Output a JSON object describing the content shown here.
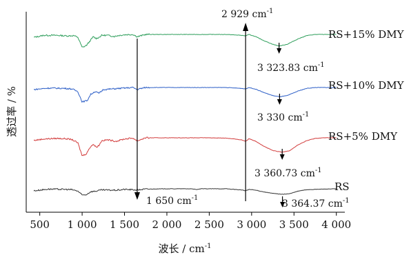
{
  "chart_data": {
    "type": "line",
    "xlabel": "波长 / cm",
    "xlabel_sup": "-1",
    "ylabel": "透过率 / %",
    "xlim": [
      340,
      4100
    ],
    "xticks": [
      500,
      1000,
      1500,
      2000,
      2500,
      3000,
      3500,
      4000
    ],
    "xtick_labels": [
      "500",
      "1 000",
      "1 500",
      "2 000",
      "2 500",
      "3 000",
      "3 500",
      "4 000"
    ],
    "y_ticks_shown": false,
    "grid": false,
    "series": [
      {
        "name": "RS+15% DMY",
        "color": "#2e9e5b",
        "offset": 3,
        "points": [
          [
            430,
            0.9
          ],
          [
            550,
            0.97
          ],
          [
            700,
            0.97
          ],
          [
            820,
            0.95
          ],
          [
            900,
            0.96
          ],
          [
            950,
            0.9
          ],
          [
            1000,
            0.55
          ],
          [
            1050,
            0.62
          ],
          [
            1100,
            0.8
          ],
          [
            1130,
            0.92
          ],
          [
            1165,
            0.86
          ],
          [
            1200,
            0.9
          ],
          [
            1230,
            0.97
          ],
          [
            1300,
            0.97
          ],
          [
            1380,
            0.93
          ],
          [
            1420,
            0.96
          ],
          [
            1500,
            0.99
          ],
          [
            1600,
            1.0
          ],
          [
            1650,
            0.92
          ],
          [
            1700,
            0.96
          ],
          [
            1750,
            1.0
          ],
          [
            2000,
            1.0
          ],
          [
            2350,
            1.0
          ],
          [
            2500,
            1.0
          ],
          [
            2700,
            1.0
          ],
          [
            2880,
            0.97
          ],
          [
            2929,
            0.95
          ],
          [
            2970,
            1.0
          ],
          [
            3050,
            0.92
          ],
          [
            3150,
            0.78
          ],
          [
            3250,
            0.66
          ],
          [
            3324,
            0.6
          ],
          [
            3420,
            0.66
          ],
          [
            3550,
            0.85
          ],
          [
            3650,
            0.96
          ],
          [
            3750,
            1.0
          ],
          [
            3850,
            1.0
          ],
          [
            4000,
            1.0
          ]
        ]
      },
      {
        "name": "RS+10% DMY",
        "color": "#2d5fc7",
        "offset": 2,
        "points": [
          [
            430,
            0.93
          ],
          [
            600,
            0.98
          ],
          [
            800,
            0.97
          ],
          [
            880,
            0.95
          ],
          [
            950,
            0.86
          ],
          [
            1000,
            0.5
          ],
          [
            1060,
            0.55
          ],
          [
            1100,
            0.76
          ],
          [
            1150,
            0.86
          ],
          [
            1200,
            0.8
          ],
          [
            1250,
            0.93
          ],
          [
            1300,
            0.94
          ],
          [
            1500,
            0.98
          ],
          [
            1600,
            1.0
          ],
          [
            1650,
            0.93
          ],
          [
            1700,
            0.97
          ],
          [
            1750,
            1.0
          ],
          [
            2000,
            1.0
          ],
          [
            2500,
            1.0
          ],
          [
            2700,
            1.0
          ],
          [
            2880,
            0.97
          ],
          [
            2929,
            0.95
          ],
          [
            2970,
            1.0
          ],
          [
            3050,
            0.94
          ],
          [
            3150,
            0.82
          ],
          [
            3250,
            0.72
          ],
          [
            3330,
            0.68
          ],
          [
            3420,
            0.72
          ],
          [
            3550,
            0.88
          ],
          [
            3650,
            0.97
          ],
          [
            3750,
            1.0
          ],
          [
            4000,
            1.0
          ]
        ]
      },
      {
        "name": "RS+5% DMY",
        "color": "#d23b3b",
        "offset": 1,
        "points": [
          [
            430,
            0.91
          ],
          [
            550,
            0.96
          ],
          [
            700,
            0.98
          ],
          [
            800,
            0.97
          ],
          [
            880,
            0.94
          ],
          [
            950,
            0.82
          ],
          [
            1000,
            0.38
          ],
          [
            1050,
            0.45
          ],
          [
            1100,
            0.7
          ],
          [
            1130,
            0.78
          ],
          [
            1165,
            0.68
          ],
          [
            1200,
            0.74
          ],
          [
            1230,
            0.9
          ],
          [
            1300,
            0.93
          ],
          [
            1400,
            0.88
          ],
          [
            1500,
            0.96
          ],
          [
            1600,
            0.99
          ],
          [
            1650,
            0.89
          ],
          [
            1700,
            0.95
          ],
          [
            1750,
            1.0
          ],
          [
            2000,
            1.0
          ],
          [
            2500,
            1.0
          ],
          [
            2700,
            0.99
          ],
          [
            2880,
            0.93
          ],
          [
            2929,
            0.88
          ],
          [
            2970,
            0.97
          ],
          [
            3050,
            0.88
          ],
          [
            3150,
            0.7
          ],
          [
            3250,
            0.56
          ],
          [
            3361,
            0.5
          ],
          [
            3450,
            0.56
          ],
          [
            3550,
            0.76
          ],
          [
            3650,
            0.9
          ],
          [
            3750,
            0.98
          ],
          [
            3850,
            1.0
          ],
          [
            4000,
            1.0
          ]
        ]
      },
      {
        "name": "RS",
        "color": "#333333",
        "offset": 0,
        "points": [
          [
            430,
            0.93
          ],
          [
            600,
            0.99
          ],
          [
            800,
            0.98
          ],
          [
            880,
            0.97
          ],
          [
            950,
            0.92
          ],
          [
            1000,
            0.78
          ],
          [
            1050,
            0.8
          ],
          [
            1100,
            0.9
          ],
          [
            1165,
            0.92
          ],
          [
            1230,
            0.96
          ],
          [
            1400,
            0.95
          ],
          [
            1500,
            0.98
          ],
          [
            1650,
            0.96
          ],
          [
            1750,
            0.99
          ],
          [
            2000,
            1.0
          ],
          [
            2300,
            1.0
          ],
          [
            2350,
            0.97
          ],
          [
            2400,
            1.0
          ],
          [
            2700,
            1.0
          ],
          [
            2880,
            0.96
          ],
          [
            2929,
            0.93
          ],
          [
            2970,
            0.98
          ],
          [
            3050,
            0.95
          ],
          [
            3150,
            0.89
          ],
          [
            3250,
            0.84
          ],
          [
            3364,
            0.81
          ],
          [
            3450,
            0.83
          ],
          [
            3550,
            0.92
          ],
          [
            3650,
            0.97
          ],
          [
            3750,
            0.98
          ],
          [
            3850,
            0.99
          ],
          [
            4000,
            1.0
          ]
        ]
      }
    ],
    "markers": [
      {
        "type": "vline",
        "x": 1650,
        "arrow": "down"
      },
      {
        "type": "vline",
        "x": 2929,
        "arrow": "up"
      }
    ],
    "peak_arrows": [
      {
        "series": "RS+15% DMY",
        "x": 3324
      },
      {
        "series": "RS+10% DMY",
        "x": 3330
      },
      {
        "series": "RS+5% DMY",
        "x": 3361
      },
      {
        "series": "RS",
        "x": 3364
      }
    ],
    "annotations": [
      {
        "id": "a2929",
        "text": "2 929 cm",
        "sup": "-1"
      },
      {
        "id": "a3323",
        "text": "3 323.83 cm",
        "sup": "-1"
      },
      {
        "id": "a3330",
        "text": "3 330 cm",
        "sup": "-1"
      },
      {
        "id": "a3360",
        "text": "3 360.73 cm",
        "sup": "-1"
      },
      {
        "id": "a1650",
        "text": "1 650 cm",
        "sup": "-1"
      },
      {
        "id": "a3364",
        "text": "3 364.37 cm",
        "sup": "-1"
      }
    ]
  }
}
